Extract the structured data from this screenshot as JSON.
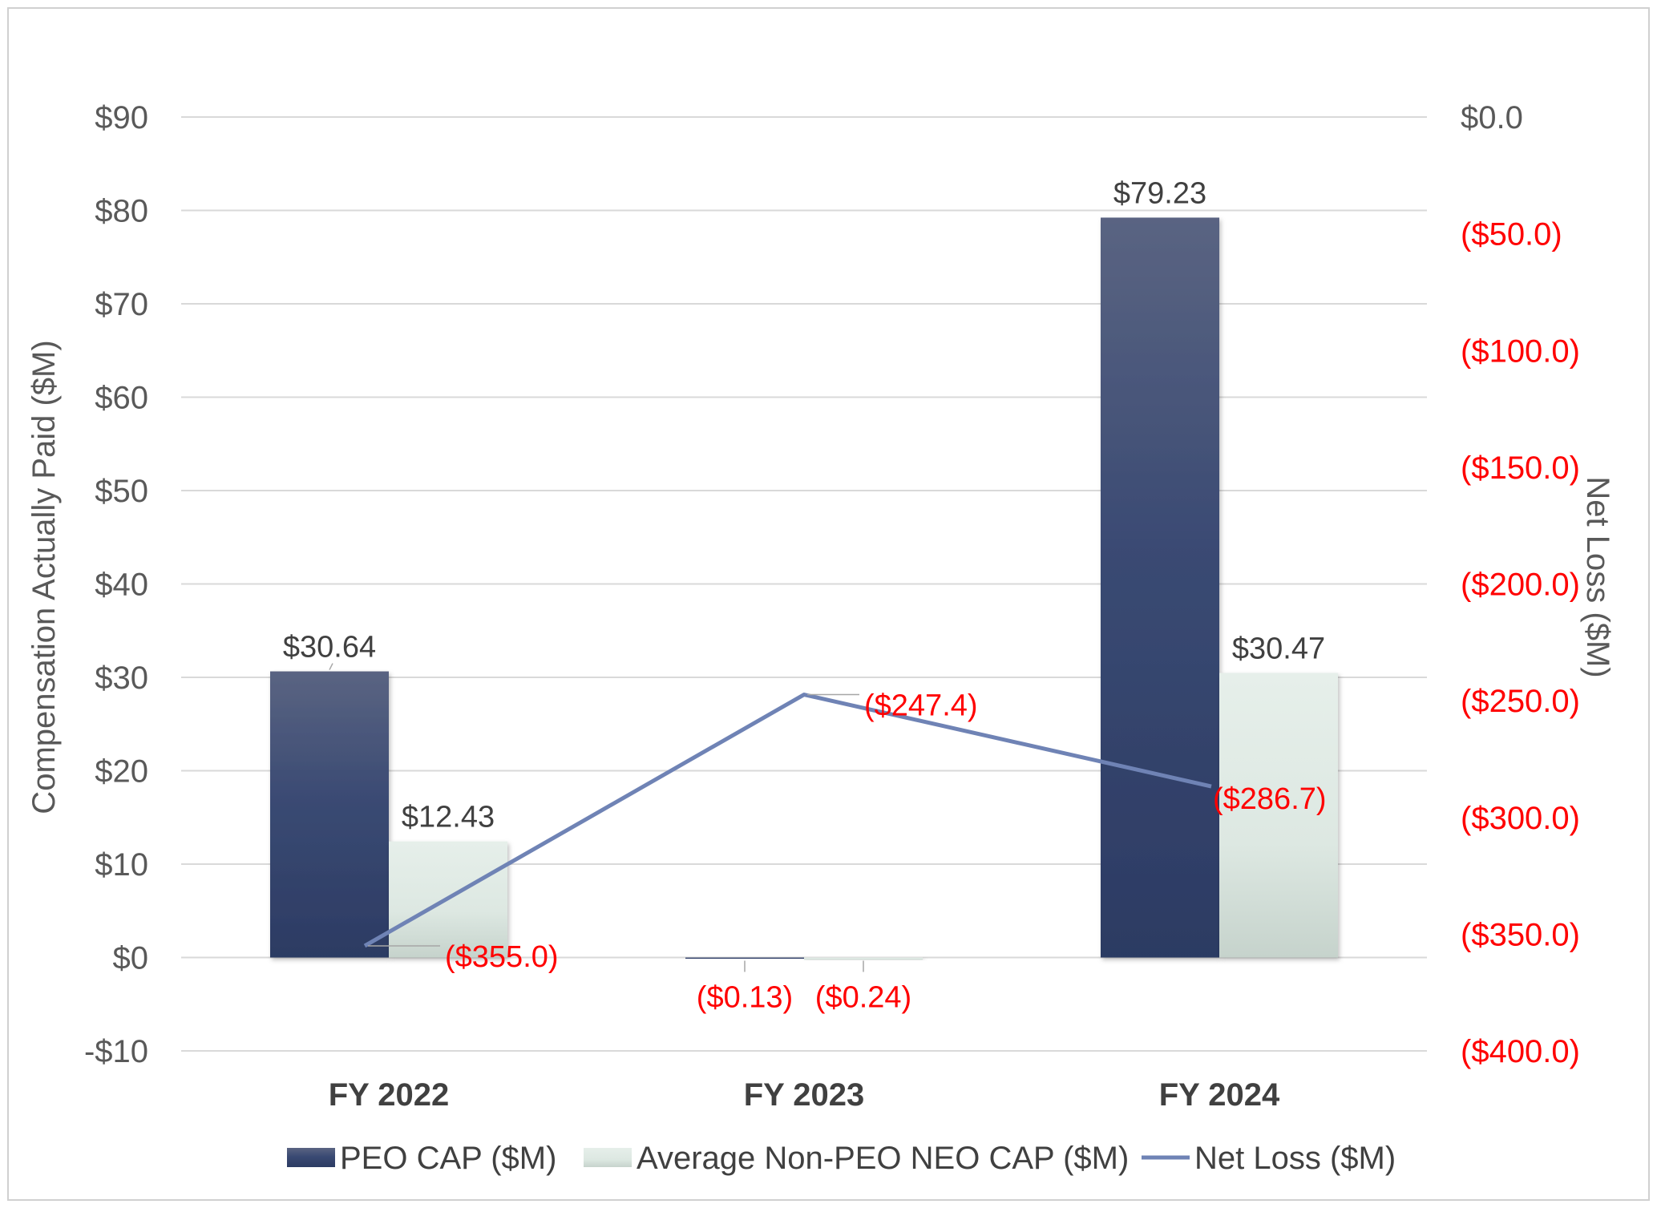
{
  "chart_data": {
    "type": "bar",
    "categories": [
      "FY 2022",
      "FY 2023",
      "FY 2024"
    ],
    "series": [
      {
        "name": "PEO CAP ($M)",
        "type": "bar",
        "axis": "left",
        "color": "#34456f",
        "values": [
          30.64,
          -0.13,
          79.23
        ],
        "labels": [
          "$30.64",
          "($0.13)",
          "$79.23"
        ]
      },
      {
        "name": "Average Non-PEO NEO CAP ($M)",
        "type": "bar",
        "axis": "left",
        "color": "#dfeae5",
        "values": [
          12.43,
          -0.24,
          30.47
        ],
        "labels": [
          "$12.43",
          "($0.24)",
          "$30.47"
        ]
      },
      {
        "name": "Net Loss ($M)",
        "type": "line",
        "axis": "right",
        "color": "#6f83b5",
        "values": [
          -355.0,
          -247.4,
          -286.7
        ],
        "labels": [
          "($355.0)",
          "($247.4)",
          "($286.7)"
        ]
      }
    ],
    "y_left": {
      "label": "Compensation Actually Paid ($M)",
      "range": [
        -10,
        90
      ],
      "ticks": [
        90,
        80,
        70,
        60,
        50,
        40,
        30,
        20,
        10,
        0,
        -10
      ],
      "tick_labels": [
        "$90",
        "$80",
        "$70",
        "$60",
        "$50",
        "$40",
        "$30",
        "$20",
        "$10",
        "$0",
        "-$10"
      ]
    },
    "y_right": {
      "label": "Net Loss ($M)",
      "range": [
        -400,
        0
      ],
      "ticks": [
        0,
        -50,
        -100,
        -150,
        -200,
        -250,
        -300,
        -350,
        -400
      ],
      "tick_labels": [
        "$0.0",
        "($50.0)",
        "($100.0)",
        "($150.0)",
        "($200.0)",
        "($250.0)",
        "($300.0)",
        "($350.0)",
        "($400.0)"
      ],
      "negative_color": "#ff0000"
    },
    "grid": true,
    "legend": "bottom",
    "label_negative_color": "#ff0000"
  }
}
